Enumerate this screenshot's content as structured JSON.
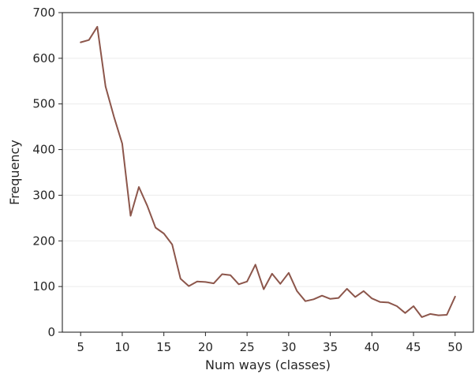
{
  "chart_data": {
    "type": "line",
    "title": "",
    "xlabel": "Num ways (classes)",
    "ylabel": "Frequency",
    "xlim": [
      2.8,
      52.2
    ],
    "ylim": [
      0,
      700
    ],
    "xticks": [
      5,
      10,
      15,
      20,
      25,
      30,
      35,
      40,
      45,
      50
    ],
    "yticks": [
      0,
      100,
      200,
      300,
      400,
      500,
      600,
      700
    ],
    "grid": "horizontal",
    "line_color": "#8c564b",
    "x": [
      5,
      6,
      7,
      8,
      9,
      10,
      11,
      12,
      13,
      14,
      15,
      16,
      17,
      18,
      19,
      20,
      21,
      22,
      23,
      24,
      25,
      26,
      27,
      28,
      29,
      30,
      31,
      32,
      33,
      34,
      35,
      36,
      37,
      38,
      39,
      40,
      41,
      42,
      43,
      44,
      45,
      46,
      47,
      48,
      49,
      50
    ],
    "y": [
      635,
      640,
      669,
      538,
      472,
      413,
      255,
      318,
      277,
      229,
      216,
      192,
      117,
      101,
      111,
      110,
      107,
      127,
      125,
      105,
      111,
      148,
      94,
      128,
      106,
      130,
      90,
      68,
      72,
      80,
      73,
      75,
      95,
      77,
      90,
      74,
      66,
      65,
      57,
      42,
      57,
      33,
      40,
      37,
      38,
      78
    ]
  }
}
